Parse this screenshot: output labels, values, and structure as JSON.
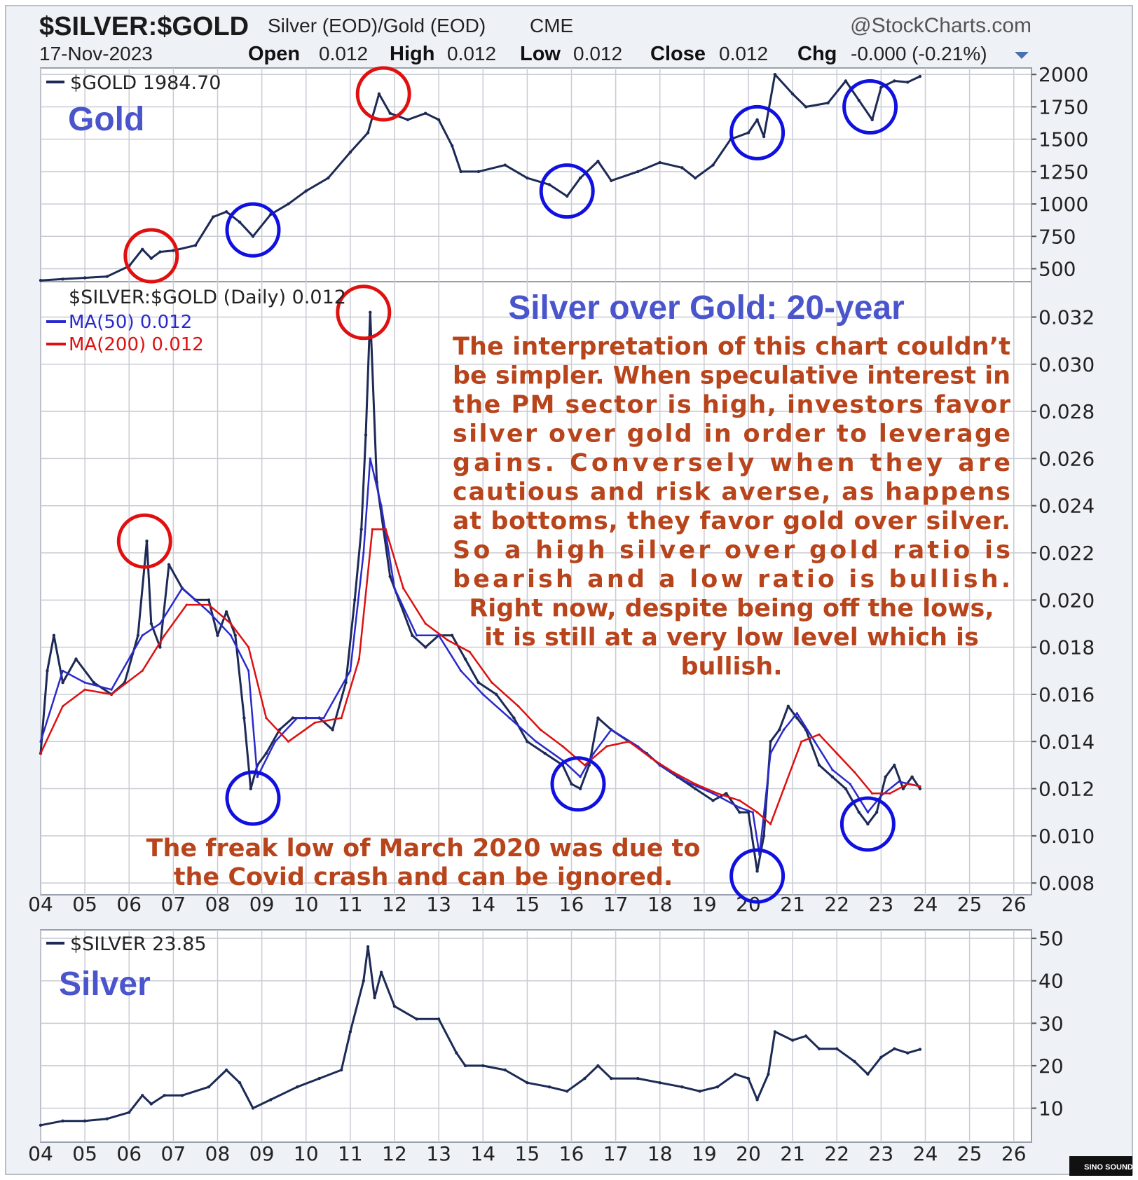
{
  "header": {
    "symbol": "$SILVER:$GOLD",
    "description": "Silver (EOD)/Gold (EOD)",
    "exchange": "CME",
    "watermark": "@StockCharts.com",
    "date": "17-Nov-2023",
    "open_label": "Open",
    "open": "0.012",
    "high_label": "High",
    "high": "0.012",
    "low_label": "Low",
    "low": "0.012",
    "close_label": "Close",
    "close": "0.012",
    "chg_label": "Chg",
    "chg": "-0.000 (-0.21%)"
  },
  "panels": {
    "gold": {
      "legend": "$GOLD 1984.70",
      "title": "Gold"
    },
    "ratio": {
      "legend": "$SILVER:$GOLD (Daily) 0.012",
      "ma50": "MA(50) 0.012",
      "ma200": "MA(200) 0.012",
      "title": "Silver over Gold: 20-year",
      "annotation_lines": [
        "The interpretation of this chart couldn’t",
        "be simpler. When speculative interest in",
        "the PM sector is high, investors favor",
        "silver over gold in order to leverage",
        "gains. Conversely when they are",
        "cautious and risk averse, as happens",
        "at bottoms, they favor gold over silver.",
        "So a high silver over gold ratio is",
        "bearish and a low ratio is bullish.",
        "Right now, despite being off the lows,",
        "it is still at a very low level which is",
        "bullish."
      ],
      "note_lines": [
        "The freak low of March 2020 was due to",
        "the Covid crash and can be ignored."
      ]
    },
    "silver": {
      "legend": "$SILVER 23.85",
      "title": "Silver"
    }
  },
  "colors": {
    "line": "#1c2a55",
    "ma50": "#2a2acc",
    "ma200": "#dd1111",
    "red_circle": "#e01010",
    "blue_circle": "#1010e0",
    "panel_title": "#4a55cc",
    "annotation": "#b8441c",
    "grid": "#c9ccd4"
  },
  "chart_data": [
    {
      "type": "line",
      "name": "gold",
      "x_ticks": [
        "04",
        "05",
        "06",
        "07",
        "08",
        "09",
        "10",
        "11",
        "12",
        "13",
        "14",
        "15",
        "16",
        "17",
        "18",
        "19",
        "20",
        "21",
        "22",
        "23",
        "24",
        "25",
        "26"
      ],
      "y_ticks": [
        500,
        750,
        1000,
        1250,
        1500,
        1750,
        2000
      ],
      "ylim": [
        400,
        2050
      ],
      "series": [
        {
          "name": "$GOLD",
          "x": [
            2004.0,
            2004.5,
            2005.0,
            2005.5,
            2006.0,
            2006.3,
            2006.5,
            2006.7,
            2007.0,
            2007.5,
            2007.9,
            2008.2,
            2008.5,
            2008.8,
            2009.2,
            2009.6,
            2010.0,
            2010.5,
            2011.0,
            2011.4,
            2011.65,
            2011.9,
            2012.3,
            2012.7,
            2013.0,
            2013.3,
            2013.5,
            2013.9,
            2014.5,
            2015.0,
            2015.5,
            2015.9,
            2016.2,
            2016.6,
            2016.9,
            2017.5,
            2018.0,
            2018.5,
            2018.8,
            2019.2,
            2019.6,
            2020.0,
            2020.2,
            2020.35,
            2020.6,
            2021.0,
            2021.3,
            2021.8,
            2022.2,
            2022.5,
            2022.8,
            2023.0,
            2023.3,
            2023.6,
            2023.88
          ],
          "y": [
            410,
            420,
            430,
            440,
            520,
            650,
            580,
            630,
            640,
            680,
            900,
            940,
            860,
            750,
            920,
            1000,
            1100,
            1200,
            1400,
            1550,
            1850,
            1700,
            1650,
            1700,
            1650,
            1450,
            1250,
            1250,
            1300,
            1200,
            1150,
            1060,
            1200,
            1330,
            1180,
            1250,
            1320,
            1280,
            1200,
            1300,
            1500,
            1550,
            1650,
            1520,
            2000,
            1850,
            1750,
            1780,
            1950,
            1800,
            1650,
            1900,
            1950,
            1940,
            1985
          ]
        }
      ],
      "highlights": {
        "red_circles": [
          "06",
          "11"
        ],
        "blue_circles": [
          "08",
          "15",
          "20",
          "22"
        ]
      }
    },
    {
      "type": "line",
      "name": "silver_gold_ratio",
      "x_ticks": [
        "04",
        "05",
        "06",
        "07",
        "08",
        "09",
        "10",
        "11",
        "12",
        "13",
        "14",
        "15",
        "16",
        "17",
        "18",
        "19",
        "20",
        "21",
        "22",
        "23",
        "24",
        "25",
        "26"
      ],
      "y_ticks": [
        0.008,
        0.01,
        0.012,
        0.014,
        0.016,
        0.018,
        0.02,
        0.022,
        0.024,
        0.026,
        0.028,
        0.03,
        0.032
      ],
      "ylim": [
        0.0075,
        0.0335
      ],
      "series": [
        {
          "name": "$SILVER:$GOLD",
          "x": [
            2004.0,
            2004.15,
            2004.3,
            2004.5,
            2004.8,
            2005.2,
            2005.6,
            2005.9,
            2006.2,
            2006.4,
            2006.5,
            2006.7,
            2006.9,
            2007.2,
            2007.5,
            2007.8,
            2008.0,
            2008.2,
            2008.4,
            2008.6,
            2008.75,
            2008.9,
            2009.1,
            2009.4,
            2009.7,
            2010.0,
            2010.3,
            2010.6,
            2010.9,
            2011.1,
            2011.25,
            2011.35,
            2011.45,
            2011.6,
            2011.75,
            2011.9,
            2012.1,
            2012.4,
            2012.7,
            2013.0,
            2013.3,
            2013.6,
            2013.9,
            2014.3,
            2014.7,
            2015.0,
            2015.4,
            2015.8,
            2016.0,
            2016.2,
            2016.4,
            2016.6,
            2016.9,
            2017.3,
            2017.7,
            2018.0,
            2018.4,
            2018.8,
            2019.2,
            2019.5,
            2019.8,
            2020.0,
            2020.2,
            2020.35,
            2020.5,
            2020.7,
            2020.9,
            2021.1,
            2021.3,
            2021.6,
            2021.9,
            2022.2,
            2022.5,
            2022.7,
            2022.9,
            2023.1,
            2023.3,
            2023.5,
            2023.7,
            2023.88
          ],
          "y": [
            0.0135,
            0.017,
            0.0185,
            0.0165,
            0.0175,
            0.0165,
            0.016,
            0.0165,
            0.0185,
            0.0225,
            0.019,
            0.018,
            0.0215,
            0.0205,
            0.02,
            0.02,
            0.0185,
            0.0195,
            0.0185,
            0.015,
            0.012,
            0.013,
            0.0135,
            0.0145,
            0.015,
            0.015,
            0.015,
            0.0145,
            0.0165,
            0.02,
            0.023,
            0.027,
            0.0322,
            0.025,
            0.023,
            0.021,
            0.02,
            0.0185,
            0.018,
            0.0185,
            0.0185,
            0.0175,
            0.0165,
            0.016,
            0.015,
            0.014,
            0.0135,
            0.013,
            0.0122,
            0.012,
            0.013,
            0.015,
            0.0145,
            0.014,
            0.0135,
            0.013,
            0.0125,
            0.012,
            0.0115,
            0.0118,
            0.011,
            0.011,
            0.0085,
            0.01,
            0.014,
            0.0145,
            0.0155,
            0.015,
            0.0145,
            0.013,
            0.0125,
            0.012,
            0.011,
            0.0105,
            0.011,
            0.0125,
            0.013,
            0.012,
            0.0125,
            0.012
          ]
        },
        {
          "name": "MA(50)",
          "x": [
            2004.0,
            2004.5,
            2005.0,
            2005.6,
            2006.3,
            2006.7,
            2007.2,
            2007.8,
            2008.3,
            2008.7,
            2008.9,
            2009.3,
            2009.8,
            2010.4,
            2011.0,
            2011.3,
            2011.45,
            2011.7,
            2012.0,
            2012.5,
            2013.0,
            2013.5,
            2014.0,
            2014.6,
            2015.2,
            2015.8,
            2016.2,
            2016.5,
            2016.9,
            2017.5,
            2018.0,
            2018.6,
            2019.2,
            2019.8,
            2020.1,
            2020.25,
            2020.5,
            2020.8,
            2021.1,
            2021.5,
            2021.9,
            2022.3,
            2022.7,
            2023.0,
            2023.4,
            2023.88
          ],
          "y": [
            0.014,
            0.017,
            0.0165,
            0.0162,
            0.0185,
            0.019,
            0.0205,
            0.0195,
            0.0185,
            0.017,
            0.0125,
            0.014,
            0.015,
            0.015,
            0.017,
            0.022,
            0.026,
            0.024,
            0.0205,
            0.0185,
            0.0185,
            0.017,
            0.016,
            0.015,
            0.014,
            0.0132,
            0.0125,
            0.0135,
            0.0145,
            0.0138,
            0.013,
            0.0123,
            0.0118,
            0.0112,
            0.011,
            0.0092,
            0.0135,
            0.0145,
            0.0152,
            0.014,
            0.0128,
            0.0122,
            0.011,
            0.0117,
            0.0123,
            0.0121
          ]
        },
        {
          "name": "MA(200)",
          "x": [
            2004.0,
            2004.5,
            2005.0,
            2005.6,
            2006.3,
            2006.8,
            2007.3,
            2007.8,
            2008.3,
            2008.7,
            2009.1,
            2009.6,
            2010.2,
            2010.8,
            2011.2,
            2011.5,
            2011.8,
            2012.2,
            2012.7,
            2013.2,
            2013.7,
            2014.2,
            2014.8,
            2015.3,
            2015.8,
            2016.3,
            2016.8,
            2017.3,
            2017.8,
            2018.3,
            2018.8,
            2019.3,
            2019.8,
            2020.2,
            2020.5,
            2020.8,
            2021.2,
            2021.6,
            2022.0,
            2022.4,
            2022.8,
            2023.2,
            2023.6,
            2023.88
          ],
          "y": [
            0.0135,
            0.0155,
            0.0162,
            0.016,
            0.017,
            0.0185,
            0.0198,
            0.0198,
            0.019,
            0.018,
            0.015,
            0.014,
            0.0148,
            0.015,
            0.0175,
            0.023,
            0.023,
            0.0205,
            0.019,
            0.0183,
            0.0178,
            0.0165,
            0.0155,
            0.0145,
            0.0138,
            0.013,
            0.0138,
            0.014,
            0.0133,
            0.0127,
            0.0122,
            0.0118,
            0.0115,
            0.011,
            0.0105,
            0.012,
            0.014,
            0.0143,
            0.0135,
            0.0127,
            0.0118,
            0.0118,
            0.0122,
            0.0121
          ]
        }
      ],
      "highlights": {
        "red_circles": [
          "06",
          "11"
        ],
        "blue_circles": [
          "08",
          "15",
          "20",
          "22"
        ]
      }
    },
    {
      "type": "line",
      "name": "silver",
      "x_ticks": [
        "04",
        "05",
        "06",
        "07",
        "08",
        "09",
        "10",
        "11",
        "12",
        "13",
        "14",
        "15",
        "16",
        "17",
        "18",
        "19",
        "20",
        "21",
        "22",
        "23",
        "24",
        "25",
        "26"
      ],
      "y_ticks": [
        10,
        20,
        30,
        40,
        50
      ],
      "ylim": [
        2,
        52
      ],
      "series": [
        {
          "name": "$SILVER",
          "x": [
            2004.0,
            2004.5,
            2005.0,
            2005.5,
            2006.0,
            2006.3,
            2006.5,
            2006.8,
            2007.2,
            2007.8,
            2008.2,
            2008.5,
            2008.8,
            2009.2,
            2009.8,
            2010.3,
            2010.8,
            2011.0,
            2011.3,
            2011.4,
            2011.55,
            2011.7,
            2012.0,
            2012.5,
            2013.0,
            2013.4,
            2013.6,
            2014.0,
            2014.5,
            2015.0,
            2015.5,
            2015.9,
            2016.3,
            2016.6,
            2016.9,
            2017.5,
            2018.0,
            2018.5,
            2018.9,
            2019.3,
            2019.7,
            2020.0,
            2020.2,
            2020.45,
            2020.6,
            2021.0,
            2021.3,
            2021.6,
            2022.0,
            2022.4,
            2022.7,
            2023.0,
            2023.3,
            2023.6,
            2023.88
          ],
          "y": [
            6,
            7,
            7,
            7.5,
            9,
            13,
            11,
            13,
            13,
            15,
            19,
            16,
            10,
            12,
            15,
            17,
            19,
            28,
            40,
            48,
            36,
            42,
            34,
            31,
            31,
            23,
            20,
            20,
            19,
            16,
            15,
            14,
            17,
            20,
            17,
            17,
            16,
            15,
            14,
            15,
            18,
            17,
            12,
            18,
            28,
            26,
            27,
            24,
            24,
            21,
            18,
            22,
            24,
            23,
            23.85
          ]
        }
      ]
    }
  ]
}
